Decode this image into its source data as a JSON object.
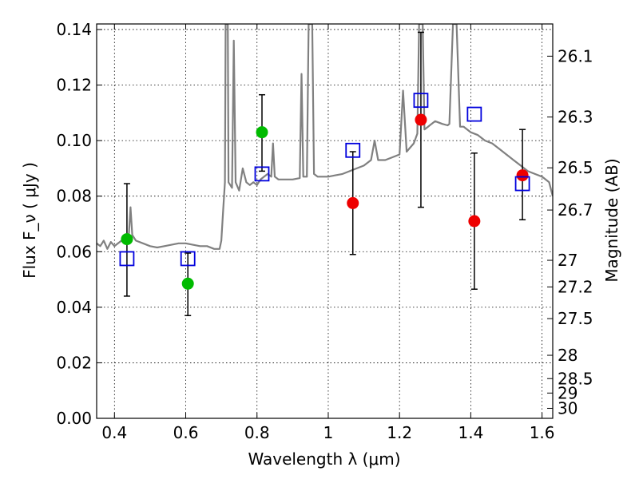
{
  "chart_data": {
    "type": "scatter",
    "xlabel": "Wavelength  λ (μm)",
    "ylabel": "Flux  F_ν  ( μJy )",
    "y2label": "Magnitude (AB)",
    "xlim": [
      0.35,
      1.63
    ],
    "ylim": [
      0.0,
      0.142
    ],
    "grid": true,
    "x_ticks": [
      0.4,
      0.6,
      0.8,
      1.0,
      1.2,
      1.4,
      1.6
    ],
    "x_tick_labels": [
      "0.4",
      "0.6",
      "0.8",
      "1",
      "1.2",
      "1.4",
      "1.6"
    ],
    "y_ticks": [
      0.0,
      0.02,
      0.04,
      0.06,
      0.08,
      0.1,
      0.12,
      0.14
    ],
    "y_tick_labels": [
      "0.00",
      "0.02",
      "0.04",
      "0.06",
      "0.08",
      "0.10",
      "0.12",
      "0.14"
    ],
    "y2_ticks": [
      {
        "label": "26.1",
        "flux": 0.1304
      },
      {
        "label": "26.3",
        "flux": 0.1085
      },
      {
        "label": "26.5",
        "flux": 0.0902
      },
      {
        "label": "26.7",
        "flux": 0.075
      },
      {
        "label": "27",
        "flux": 0.0569
      },
      {
        "label": "27.2",
        "flux": 0.0473
      },
      {
        "label": "27.5",
        "flux": 0.0359
      },
      {
        "label": "28",
        "flux": 0.0227
      },
      {
        "label": "28.5",
        "flux": 0.0143
      },
      {
        "label": "29",
        "flux": 0.0091
      },
      {
        "label": "30",
        "flux": 0.0036
      }
    ],
    "series": [
      {
        "marker": "circle",
        "color": "#00bb00",
        "points": [
          {
            "x": 0.435,
            "y": 0.0645,
            "err_low": 0.044,
            "err_high": 0.0845
          },
          {
            "x": 0.606,
            "y": 0.0485,
            "err_low": 0.037,
            "err_high": 0.0595
          },
          {
            "x": 0.814,
            "y": 0.103,
            "err_low": 0.089,
            "err_high": 0.1165
          }
        ]
      },
      {
        "marker": "circle",
        "color": "#ee0000",
        "points": [
          {
            "x": 1.069,
            "y": 0.0775,
            "err_low": 0.059,
            "err_high": 0.096
          },
          {
            "x": 1.26,
            "y": 0.1075,
            "err_low": 0.076,
            "err_high": 0.139
          },
          {
            "x": 1.41,
            "y": 0.071,
            "err_low": 0.0465,
            "err_high": 0.0955
          },
          {
            "x": 1.545,
            "y": 0.0875,
            "err_low": 0.0715,
            "err_high": 0.104
          }
        ]
      },
      {
        "marker": "open-square",
        "color": "#0000dd",
        "points": [
          {
            "x": 0.435,
            "y": 0.0575
          },
          {
            "x": 0.606,
            "y": 0.0575
          },
          {
            "x": 0.814,
            "y": 0.088
          },
          {
            "x": 1.069,
            "y": 0.0965
          },
          {
            "x": 1.26,
            "y": 0.1145
          },
          {
            "x": 1.41,
            "y": 0.1095
          },
          {
            "x": 1.545,
            "y": 0.0845
          }
        ]
      },
      {
        "marker": "line",
        "color": "#808080",
        "points": [
          [
            0.35,
            0.063
          ],
          [
            0.36,
            0.062
          ],
          [
            0.37,
            0.064
          ],
          [
            0.38,
            0.061
          ],
          [
            0.39,
            0.0635
          ],
          [
            0.4,
            0.062
          ],
          [
            0.41,
            0.063
          ],
          [
            0.42,
            0.064
          ],
          [
            0.43,
            0.066
          ],
          [
            0.44,
            0.065
          ],
          [
            0.445,
            0.076
          ],
          [
            0.45,
            0.066
          ],
          [
            0.46,
            0.064
          ],
          [
            0.48,
            0.063
          ],
          [
            0.5,
            0.062
          ],
          [
            0.52,
            0.0615
          ],
          [
            0.54,
            0.062
          ],
          [
            0.56,
            0.0625
          ],
          [
            0.58,
            0.063
          ],
          [
            0.6,
            0.063
          ],
          [
            0.62,
            0.0625
          ],
          [
            0.64,
            0.062
          ],
          [
            0.66,
            0.062
          ],
          [
            0.68,
            0.061
          ],
          [
            0.695,
            0.061
          ],
          [
            0.7,
            0.064
          ],
          [
            0.705,
            0.075
          ],
          [
            0.71,
            0.085
          ],
          [
            0.712,
            0.142
          ],
          [
            0.718,
            0.142
          ],
          [
            0.72,
            0.085
          ],
          [
            0.73,
            0.083
          ],
          [
            0.735,
            0.136
          ],
          [
            0.74,
            0.085
          ],
          [
            0.75,
            0.082
          ],
          [
            0.76,
            0.09
          ],
          [
            0.77,
            0.085
          ],
          [
            0.78,
            0.084
          ],
          [
            0.79,
            0.085
          ],
          [
            0.8,
            0.084
          ],
          [
            0.81,
            0.086
          ],
          [
            0.82,
            0.087
          ],
          [
            0.83,
            0.088
          ],
          [
            0.84,
            0.087
          ],
          [
            0.845,
            0.099
          ],
          [
            0.85,
            0.087
          ],
          [
            0.86,
            0.086
          ],
          [
            0.88,
            0.086
          ],
          [
            0.9,
            0.086
          ],
          [
            0.92,
            0.0865
          ],
          [
            0.925,
            0.124
          ],
          [
            0.93,
            0.087
          ],
          [
            0.94,
            0.087
          ],
          [
            0.945,
            0.142
          ],
          [
            0.955,
            0.142
          ],
          [
            0.96,
            0.088
          ],
          [
            0.97,
            0.087
          ],
          [
            0.98,
            0.087
          ],
          [
            1.0,
            0.087
          ],
          [
            1.02,
            0.0875
          ],
          [
            1.04,
            0.088
          ],
          [
            1.06,
            0.089
          ],
          [
            1.08,
            0.09
          ],
          [
            1.1,
            0.091
          ],
          [
            1.12,
            0.093
          ],
          [
            1.13,
            0.1
          ],
          [
            1.14,
            0.093
          ],
          [
            1.16,
            0.093
          ],
          [
            1.18,
            0.094
          ],
          [
            1.2,
            0.095
          ],
          [
            1.21,
            0.118
          ],
          [
            1.22,
            0.096
          ],
          [
            1.24,
            0.099
          ],
          [
            1.25,
            0.1025
          ],
          [
            1.255,
            0.142
          ],
          [
            1.265,
            0.142
          ],
          [
            1.27,
            0.104
          ],
          [
            1.28,
            0.105
          ],
          [
            1.29,
            0.106
          ],
          [
            1.3,
            0.107
          ],
          [
            1.32,
            0.106
          ],
          [
            1.335,
            0.1055
          ],
          [
            1.34,
            0.106
          ],
          [
            1.35,
            0.142
          ],
          [
            1.36,
            0.142
          ],
          [
            1.37,
            0.105
          ],
          [
            1.38,
            0.105
          ],
          [
            1.4,
            0.103
          ],
          [
            1.42,
            0.102
          ],
          [
            1.44,
            0.1
          ],
          [
            1.46,
            0.099
          ],
          [
            1.48,
            0.097
          ],
          [
            1.5,
            0.095
          ],
          [
            1.52,
            0.093
          ],
          [
            1.54,
            0.091
          ],
          [
            1.56,
            0.089
          ],
          [
            1.58,
            0.088
          ],
          [
            1.6,
            0.087
          ],
          [
            1.62,
            0.085
          ],
          [
            1.63,
            0.08
          ]
        ]
      }
    ]
  }
}
